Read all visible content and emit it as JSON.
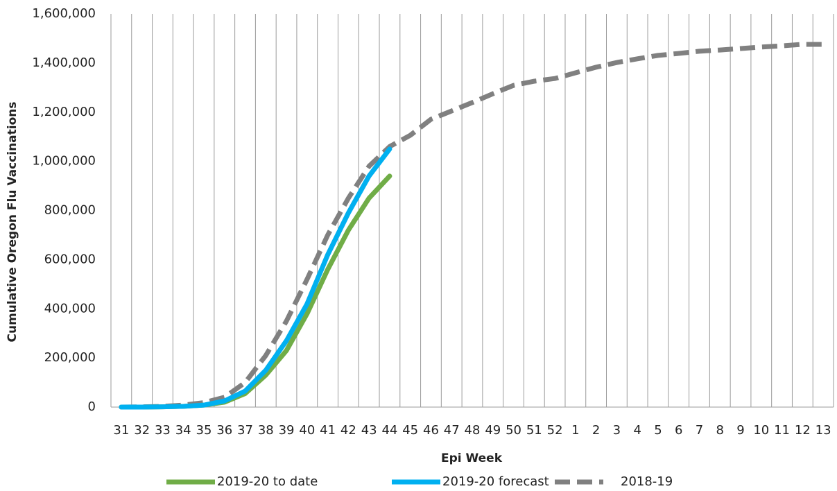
{
  "chart_data": {
    "type": "line",
    "x_label": "Epi Week",
    "y_label": "Cumulative Oregon Flu Vaccinations",
    "categories": [
      "31",
      "32",
      "33",
      "34",
      "35",
      "36",
      "37",
      "38",
      "39",
      "40",
      "41",
      "42",
      "43",
      "44",
      "45",
      "46",
      "47",
      "48",
      "49",
      "50",
      "51",
      "52",
      "1",
      "2",
      "3",
      "4",
      "5",
      "6",
      "7",
      "8",
      "9",
      "10",
      "11",
      "12",
      "13"
    ],
    "series": [
      {
        "name": "2019-20 to date",
        "color": "#70ad47",
        "dashed": false,
        "values": [
          0,
          0,
          1000,
          3000,
          8000,
          20000,
          55000,
          130000,
          230000,
          380000,
          560000,
          720000,
          850000,
          940000,
          null,
          null,
          null,
          null,
          null,
          null,
          null,
          null,
          null,
          null,
          null,
          null,
          null,
          null,
          null,
          null,
          null,
          null,
          null,
          null,
          null
        ]
      },
      {
        "name": "2019-20 forecast",
        "color": "#00b0f0",
        "dashed": false,
        "values": [
          0,
          0,
          1000,
          3000,
          8000,
          25000,
          65000,
          150000,
          270000,
          420000,
          620000,
          790000,
          940000,
          1050000,
          null,
          null,
          null,
          null,
          null,
          null,
          null,
          null,
          null,
          null,
          null,
          null,
          null,
          null,
          null,
          null,
          null,
          null,
          null,
          null,
          null
        ]
      },
      {
        "name": "2018-19",
        "color": "#808080",
        "dashed": true,
        "values": [
          0,
          1000,
          3000,
          8000,
          18000,
          40000,
          100000,
          210000,
          350000,
          520000,
          700000,
          850000,
          980000,
          1060000,
          1106000,
          1171000,
          1205000,
          1239000,
          1275000,
          1309000,
          1326000,
          1337000,
          1360000,
          1383000,
          1402000,
          1417000,
          1431000,
          1439000,
          1448000,
          1453000,
          1459000,
          1465000,
          1470000,
          1476000,
          1476000
        ]
      }
    ],
    "ylim": [
      0,
      1600000
    ],
    "yticks": [
      0,
      {
        "value": 200000,
        "label": "200,000"
      },
      {
        "value": 400000,
        "label": "400,000"
      },
      {
        "value": 600000,
        "label": "600,000"
      },
      {
        "value": 800000,
        "label": "800,000"
      },
      {
        "value": 1000000,
        "label": "1,000,000"
      },
      {
        "value": 1200000,
        "label": "1,200,000"
      },
      {
        "value": 1400000,
        "label": "1,400,000"
      },
      {
        "value": 1600000,
        "label": "1,600,000"
      }
    ],
    "vertical_grid": true,
    "legend": "bottom"
  }
}
